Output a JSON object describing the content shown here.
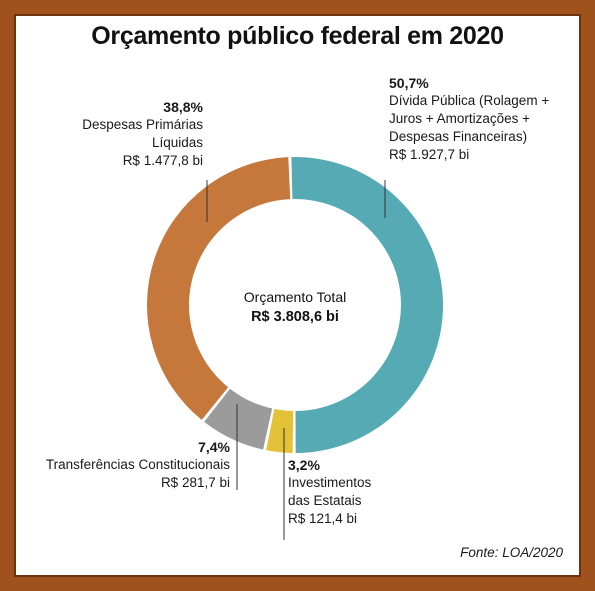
{
  "title": "Orçamento público federal em 2020",
  "center": {
    "label": "Orçamento Total",
    "value": "R$ 3.808,6 bi"
  },
  "source": "Fonte: LOA/2020",
  "colors": {
    "frame": "#a0521c",
    "divida": "#56aab4",
    "investimentos": "#e3c238",
    "transferencias": "#9b9b9b",
    "despesas": "#c5773c"
  },
  "chart_data": {
    "type": "pie",
    "donut": true,
    "title": "Orçamento público federal em 2020",
    "total": "R$ 3.808,6 bi",
    "slices": [
      {
        "key": "divida",
        "pct_label": "50,7%",
        "pct": 50.7,
        "name_lines": [
          "Dívida Pública (Rolagem +",
          "Juros + Amortizações +",
          "Despesas Financeiras)"
        ],
        "value_label": "R$ 1.927,7 bi",
        "value": 1927.7,
        "color": "#56aab4"
      },
      {
        "key": "investimentos",
        "pct_label": "3,2%",
        "pct": 3.2,
        "name_lines": [
          "Investimentos",
          "das Estatais"
        ],
        "value_label": "R$ 121,4 bi",
        "value": 121.4,
        "color": "#e3c238"
      },
      {
        "key": "transferencias",
        "pct_label": "7,4%",
        "pct": 7.4,
        "name_lines": [
          "Transferências Constitucionais"
        ],
        "value_label": "R$ 281,7 bi",
        "value": 281.7,
        "color": "#9b9b9b"
      },
      {
        "key": "despesas",
        "pct_label": "38,8%",
        "pct": 38.8,
        "name_lines": [
          "Despesas Primárias",
          "Líquidas"
        ],
        "value_label": "R$ 1.477,8 bi",
        "value": 1477.8,
        "color": "#c5773c"
      }
    ]
  }
}
